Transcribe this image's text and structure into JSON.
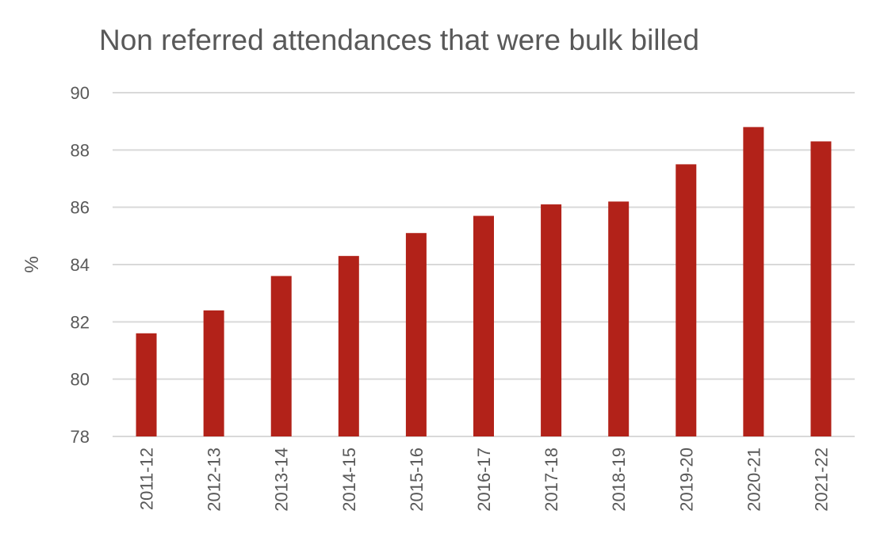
{
  "chart_data": {
    "type": "bar",
    "title": "Non referred attendances that were bulk billed",
    "xlabel": "",
    "ylabel": "%",
    "ylim": [
      78,
      90
    ],
    "yticks": [
      78,
      80,
      82,
      84,
      86,
      88,
      90
    ],
    "grid": true,
    "categories": [
      "2011-12",
      "2012-13",
      "2013-14",
      "2014-15",
      "2015-16",
      "2016-17",
      "2017-18",
      "2018-19",
      "2019-20",
      "2020-21",
      "2021-22"
    ],
    "values": [
      81.6,
      82.4,
      83.6,
      84.3,
      85.1,
      85.7,
      86.1,
      86.2,
      87.5,
      88.8,
      88.3
    ],
    "colors": {
      "bar": "#B22219",
      "grid": "#D9D9D9",
      "text": "#595959"
    }
  }
}
